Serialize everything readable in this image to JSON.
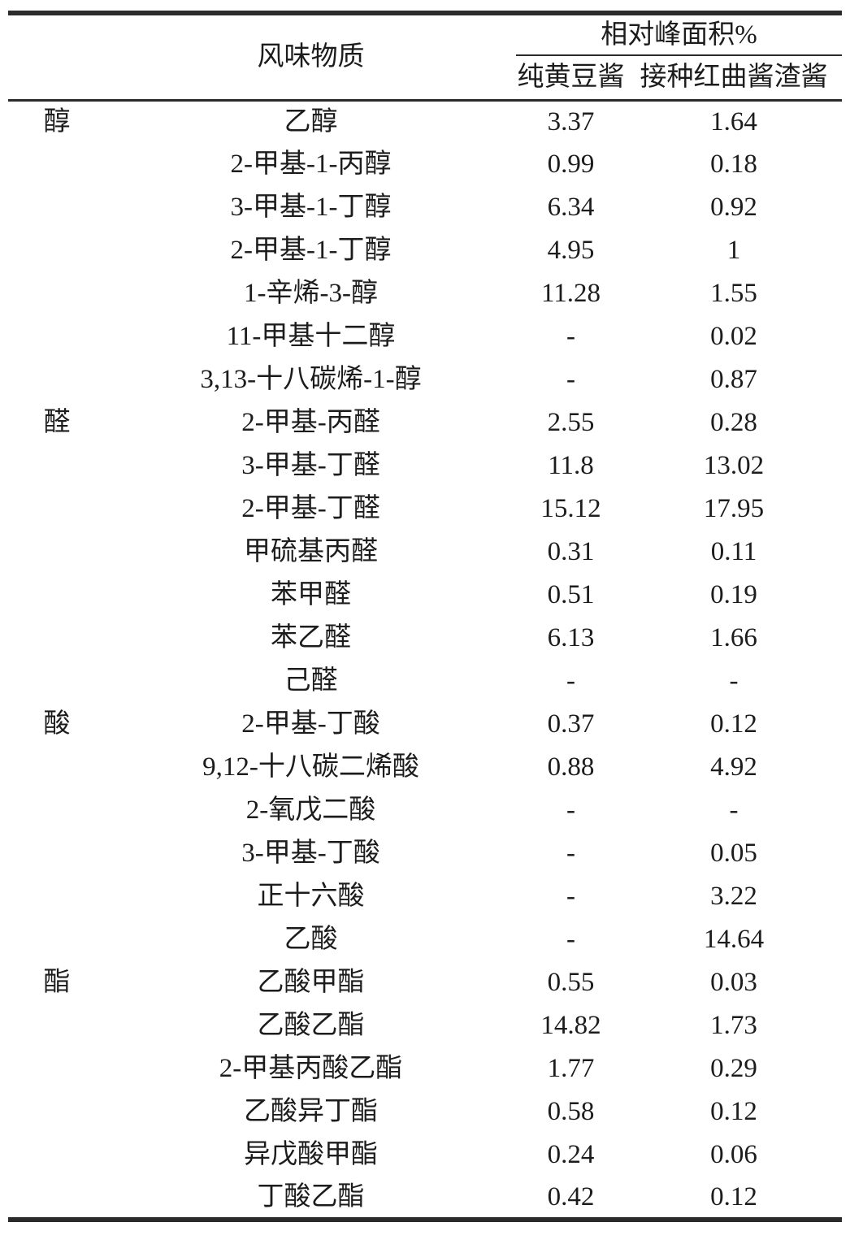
{
  "page": {
    "background": "#ffffff",
    "text_color": "#1c1c1c",
    "line_color": "#2b2b2b"
  },
  "table": {
    "header": {
      "flavor_col": "风味物质",
      "group_col": "相对峰面积%",
      "samples": [
        "纯黄豆酱",
        "接种红曲酱渣酱"
      ]
    },
    "rows": [
      {
        "cat": "醇",
        "name": "乙醇",
        "v1": "3.37",
        "v2": "1.64"
      },
      {
        "cat": "",
        "name": "2-甲基-1-丙醇",
        "v1": "0.99",
        "v2": "0.18"
      },
      {
        "cat": "",
        "name": "3-甲基-1-丁醇",
        "v1": "6.34",
        "v2": "0.92"
      },
      {
        "cat": "",
        "name": "2-甲基-1-丁醇",
        "v1": "4.95",
        "v2": "1"
      },
      {
        "cat": "",
        "name": "1-辛烯-3-醇",
        "v1": "11.28",
        "v2": "1.55"
      },
      {
        "cat": "",
        "name": "11-甲基十二醇",
        "v1": "-",
        "v2": "0.02"
      },
      {
        "cat": "",
        "name": "3,13-十八碳烯-1-醇",
        "v1": "-",
        "v2": "0.87"
      },
      {
        "cat": "醛",
        "name": "2-甲基-丙醛",
        "v1": "2.55",
        "v2": "0.28"
      },
      {
        "cat": "",
        "name": "3-甲基-丁醛",
        "v1": "11.8",
        "v2": "13.02"
      },
      {
        "cat": "",
        "name": "2-甲基-丁醛",
        "v1": "15.12",
        "v2": "17.95"
      },
      {
        "cat": "",
        "name": "甲硫基丙醛",
        "v1": "0.31",
        "v2": "0.11"
      },
      {
        "cat": "",
        "name": "苯甲醛",
        "v1": "0.51",
        "v2": "0.19"
      },
      {
        "cat": "",
        "name": "苯乙醛",
        "v1": "6.13",
        "v2": "1.66"
      },
      {
        "cat": "",
        "name": "己醛",
        "v1": "-",
        "v2": "-"
      },
      {
        "cat": "酸",
        "name": "2-甲基-丁酸",
        "v1": "0.37",
        "v2": "0.12"
      },
      {
        "cat": "",
        "name": "9,12-十八碳二烯酸",
        "v1": "0.88",
        "v2": "4.92"
      },
      {
        "cat": "",
        "name": "2-氧戊二酸",
        "v1": "-",
        "v2": "-"
      },
      {
        "cat": "",
        "name": "3-甲基-丁酸",
        "v1": "-",
        "v2": "0.05"
      },
      {
        "cat": "",
        "name": "正十六酸",
        "v1": "-",
        "v2": "3.22"
      },
      {
        "cat": "",
        "name": "乙酸",
        "v1": "-",
        "v2": "14.64"
      },
      {
        "cat": "酯",
        "name": "乙酸甲酯",
        "v1": "0.55",
        "v2": "0.03"
      },
      {
        "cat": "",
        "name": "乙酸乙酯",
        "v1": "14.82",
        "v2": "1.73"
      },
      {
        "cat": "",
        "name": "2-甲基丙酸乙酯",
        "v1": "1.77",
        "v2": "0.29"
      },
      {
        "cat": "",
        "name": "乙酸异丁酯",
        "v1": "0.58",
        "v2": "0.12"
      },
      {
        "cat": "",
        "name": "异戊酸甲酯",
        "v1": "0.24",
        "v2": "0.06"
      },
      {
        "cat": "",
        "name": "丁酸乙酯",
        "v1": "0.42",
        "v2": "0.12"
      }
    ]
  }
}
